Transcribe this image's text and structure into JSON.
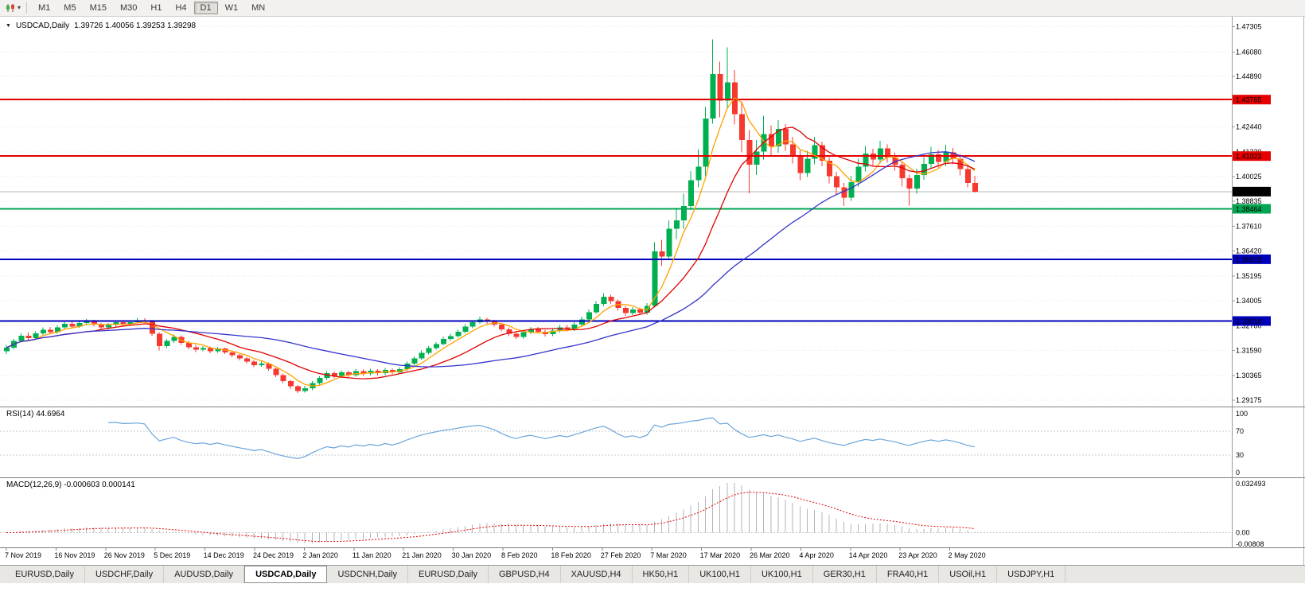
{
  "toolbar": {
    "timeframes": [
      "M1",
      "M5",
      "M15",
      "M30",
      "H1",
      "H4",
      "D1",
      "W1",
      "MN"
    ],
    "active_timeframe": "D1"
  },
  "chart": {
    "collapse_icon": "▼",
    "title_symbol": "USDCAD,Daily",
    "ohlc": "1.39726 1.40056 1.39253 1.39298"
  },
  "chart_data": {
    "type": "candlestick",
    "symbol": "USDCAD",
    "timeframe": "Daily",
    "up_color": "#00b050",
    "down_color": "#f5392f",
    "last_ohlc": {
      "open": "1.39726",
      "high": "1.40056",
      "low": "1.39253",
      "close": "1.39298"
    },
    "y_ticks": [
      "1.47305",
      "1.46080",
      "1.44890",
      "1.43700",
      "1.42440",
      "1.41230",
      "1.40025",
      "1.38835",
      "1.37610",
      "1.36420",
      "1.35195",
      "1.34005",
      "1.32780",
      "1.31590",
      "1.30365",
      "1.29175"
    ],
    "hlines": [
      {
        "price": 1.43765,
        "label": "1.43765",
        "color": "#e60000"
      },
      {
        "price": 1.41023,
        "label": "1.41023",
        "color": "#e60000"
      },
      {
        "price": 1.38464,
        "label": "1.38464",
        "color": "#00a651"
      },
      {
        "price": 1.36015,
        "label": "1.36015",
        "color": "#0000bb"
      },
      {
        "price": 1.33018,
        "label": "1.33018",
        "color": "#0000bb"
      }
    ],
    "current_price": {
      "price": 1.39298,
      "label": "1.39298",
      "color": "#000000"
    },
    "moving_averages": [
      {
        "period": 5,
        "color": "#ffa200"
      },
      {
        "period": 13,
        "color": "#e00000"
      },
      {
        "period": 34,
        "color": "#3333cc"
      }
    ],
    "indicators": {
      "rsi": {
        "label": "RSI(14) 44.6964",
        "period": 14,
        "value": "44.6964",
        "levels": [
          100,
          70,
          30,
          0
        ],
        "line_color": "#6aa5dc"
      },
      "macd": {
        "label": "MACD(12,26,9) -0.000603 0.000141",
        "fast": 12,
        "slow": 26,
        "signal": 9,
        "values": [
          "-0.000603",
          "0.000141"
        ],
        "axis_labels": [
          "0.032493",
          "0.00",
          "-0.00808"
        ],
        "hist_color": "#b5b5b5",
        "signal_color": "#e00000"
      }
    },
    "date_labels": [
      "7 Nov 2019",
      "16 Nov 2019",
      "26 Nov 2019",
      "5 Dec 2019",
      "14 Dec 2019",
      "24 Dec 2019",
      "2 Jan 2020",
      "11 Jan 2020",
      "21 Jan 2020",
      "30 Jan 2020",
      "8 Feb 2020",
      "18 Feb 2020",
      "27 Feb 2020",
      "7 Mar 2020",
      "17 Mar 2020",
      "26 Mar 2020",
      "4 Apr 2020",
      "14 Apr 2020",
      "23 Apr 2020",
      "2 May 2020"
    ],
    "candles": [
      [
        1.3155,
        1.3185,
        1.3142,
        1.3172
      ],
      [
        1.3172,
        1.3215,
        1.3165,
        1.3205
      ],
      [
        1.3205,
        1.3242,
        1.3198,
        1.323
      ],
      [
        1.323,
        1.3245,
        1.3205,
        1.3218
      ],
      [
        1.3218,
        1.3252,
        1.321,
        1.3242
      ],
      [
        1.3242,
        1.327,
        1.3235,
        1.326
      ],
      [
        1.326,
        1.3272,
        1.3238,
        1.3248
      ],
      [
        1.3248,
        1.328,
        1.324,
        1.327
      ],
      [
        1.327,
        1.3298,
        1.3262,
        1.3288
      ],
      [
        1.3288,
        1.3297,
        1.3265,
        1.3275
      ],
      [
        1.3275,
        1.3302,
        1.3268,
        1.3292
      ],
      [
        1.3292,
        1.3312,
        1.3285,
        1.33
      ],
      [
        1.33,
        1.3308,
        1.3275,
        1.3285
      ],
      [
        1.3285,
        1.3292,
        1.3258,
        1.327
      ],
      [
        1.327,
        1.3293,
        1.3262,
        1.3282
      ],
      [
        1.3282,
        1.3305,
        1.3275,
        1.3295
      ],
      [
        1.3295,
        1.3304,
        1.3278,
        1.3288
      ],
      [
        1.3288,
        1.3306,
        1.328,
        1.3296
      ],
      [
        1.3296,
        1.3318,
        1.329,
        1.3305
      ],
      [
        1.3305,
        1.3315,
        1.3292,
        1.33
      ],
      [
        1.33,
        1.3308,
        1.323,
        1.324
      ],
      [
        1.324,
        1.3248,
        1.3158,
        1.318
      ],
      [
        1.318,
        1.3215,
        1.317,
        1.3205
      ],
      [
        1.3205,
        1.3236,
        1.3196,
        1.3225
      ],
      [
        1.3225,
        1.3232,
        1.3185,
        1.3195
      ],
      [
        1.3195,
        1.3205,
        1.3165,
        1.3175
      ],
      [
        1.3175,
        1.3185,
        1.3152,
        1.3162
      ],
      [
        1.3162,
        1.318,
        1.3155,
        1.317
      ],
      [
        1.317,
        1.3178,
        1.3146,
        1.3155
      ],
      [
        1.3155,
        1.3177,
        1.3148,
        1.3168
      ],
      [
        1.3168,
        1.3173,
        1.3142,
        1.315
      ],
      [
        1.315,
        1.3158,
        1.3126,
        1.3135
      ],
      [
        1.3135,
        1.3142,
        1.311,
        1.312
      ],
      [
        1.312,
        1.3128,
        1.3096,
        1.3105
      ],
      [
        1.3105,
        1.3112,
        1.3078,
        1.3088
      ],
      [
        1.3088,
        1.3104,
        1.308,
        1.3095
      ],
      [
        1.3095,
        1.31,
        1.306,
        1.307
      ],
      [
        1.307,
        1.3076,
        1.303,
        1.304
      ],
      [
        1.304,
        1.3046,
        1.3,
        1.301
      ],
      [
        1.301,
        1.3016,
        1.2972,
        1.2985
      ],
      [
        1.2985,
        1.299,
        1.2952,
        1.2962
      ],
      [
        1.2962,
        1.2986,
        1.2955,
        1.2975
      ],
      [
        1.2975,
        1.301,
        1.2966,
        1.3
      ],
      [
        1.3,
        1.3034,
        1.2992,
        1.3025
      ],
      [
        1.3025,
        1.3058,
        1.3016,
        1.3048
      ],
      [
        1.3048,
        1.3056,
        1.3024,
        1.3035
      ],
      [
        1.3035,
        1.3062,
        1.3026,
        1.3052
      ],
      [
        1.3052,
        1.306,
        1.303,
        1.304
      ],
      [
        1.304,
        1.3068,
        1.3032,
        1.3058
      ],
      [
        1.3058,
        1.3066,
        1.3036,
        1.3046
      ],
      [
        1.3046,
        1.307,
        1.3038,
        1.306
      ],
      [
        1.306,
        1.3068,
        1.3038,
        1.3048
      ],
      [
        1.3048,
        1.3074,
        1.304,
        1.3065
      ],
      [
        1.3065,
        1.3072,
        1.3042,
        1.3052
      ],
      [
        1.3052,
        1.3078,
        1.3044,
        1.3068
      ],
      [
        1.3068,
        1.3104,
        1.306,
        1.3095
      ],
      [
        1.3095,
        1.313,
        1.3088,
        1.312
      ],
      [
        1.312,
        1.3158,
        1.3112,
        1.3148
      ],
      [
        1.3148,
        1.318,
        1.314,
        1.317
      ],
      [
        1.317,
        1.32,
        1.3162,
        1.319
      ],
      [
        1.319,
        1.3226,
        1.3184,
        1.3215
      ],
      [
        1.3215,
        1.324,
        1.3206,
        1.3228
      ],
      [
        1.3228,
        1.3262,
        1.322,
        1.325
      ],
      [
        1.325,
        1.3286,
        1.3242,
        1.3275
      ],
      [
        1.3275,
        1.3306,
        1.3266,
        1.3295
      ],
      [
        1.3295,
        1.3322,
        1.3288,
        1.331
      ],
      [
        1.331,
        1.3318,
        1.3288,
        1.3298
      ],
      [
        1.3298,
        1.3308,
        1.3274,
        1.3285
      ],
      [
        1.3285,
        1.3292,
        1.3252,
        1.3262
      ],
      [
        1.3262,
        1.327,
        1.3228,
        1.324
      ],
      [
        1.324,
        1.3248,
        1.3214,
        1.3225
      ],
      [
        1.3225,
        1.3258,
        1.3216,
        1.3248
      ],
      [
        1.3248,
        1.3272,
        1.3238,
        1.3262
      ],
      [
        1.3262,
        1.3272,
        1.324,
        1.325
      ],
      [
        1.325,
        1.326,
        1.3226,
        1.3238
      ],
      [
        1.3238,
        1.3266,
        1.3228,
        1.3255
      ],
      [
        1.3255,
        1.3282,
        1.3246,
        1.327
      ],
      [
        1.327,
        1.3282,
        1.3252,
        1.3262
      ],
      [
        1.3262,
        1.3296,
        1.3254,
        1.3285
      ],
      [
        1.3285,
        1.3322,
        1.3276,
        1.331
      ],
      [
        1.331,
        1.3358,
        1.33,
        1.3345
      ],
      [
        1.3345,
        1.3398,
        1.3336,
        1.3385
      ],
      [
        1.3385,
        1.3436,
        1.3376,
        1.342
      ],
      [
        1.342,
        1.343,
        1.3384,
        1.3398
      ],
      [
        1.3398,
        1.3406,
        1.3352,
        1.3365
      ],
      [
        1.3365,
        1.3374,
        1.3326,
        1.334
      ],
      [
        1.334,
        1.337,
        1.333,
        1.3358
      ],
      [
        1.3358,
        1.3368,
        1.333,
        1.3342
      ],
      [
        1.3342,
        1.3388,
        1.3332,
        1.3375
      ],
      [
        1.3375,
        1.3685,
        1.3368,
        1.364
      ],
      [
        1.364,
        1.3695,
        1.357,
        1.3615
      ],
      [
        1.3615,
        1.379,
        1.3598,
        1.375
      ],
      [
        1.375,
        1.3852,
        1.37,
        1.379
      ],
      [
        1.379,
        1.392,
        1.375,
        1.386
      ],
      [
        1.386,
        1.403,
        1.384,
        1.3985
      ],
      [
        1.3985,
        1.4135,
        1.395,
        1.405
      ],
      [
        1.405,
        1.434,
        1.4005,
        1.4285
      ],
      [
        1.4285,
        1.4669,
        1.426,
        1.45
      ],
      [
        1.45,
        1.456,
        1.429,
        1.4372
      ],
      [
        1.4372,
        1.463,
        1.433,
        1.446
      ],
      [
        1.446,
        1.452,
        1.4255,
        1.4305
      ],
      [
        1.4305,
        1.4365,
        1.412,
        1.418
      ],
      [
        1.418,
        1.4228,
        1.3922,
        1.406
      ],
      [
        1.406,
        1.418,
        1.401,
        1.4125
      ],
      [
        1.4125,
        1.4298,
        1.4086,
        1.421
      ],
      [
        1.421,
        1.4252,
        1.4105,
        1.415
      ],
      [
        1.415,
        1.4276,
        1.4118,
        1.4235
      ],
      [
        1.4235,
        1.4258,
        1.4128,
        1.416
      ],
      [
        1.416,
        1.4196,
        1.4066,
        1.4105
      ],
      [
        1.4105,
        1.413,
        1.3985,
        1.402
      ],
      [
        1.402,
        1.4128,
        1.4,
        1.409
      ],
      [
        1.409,
        1.4195,
        1.4062,
        1.4155
      ],
      [
        1.4155,
        1.4172,
        1.4052,
        1.408
      ],
      [
        1.408,
        1.4098,
        1.397,
        1.4005
      ],
      [
        1.4005,
        1.4026,
        1.3918,
        1.395
      ],
      [
        1.395,
        1.3972,
        1.386,
        1.39
      ],
      [
        1.39,
        1.4006,
        1.3885,
        1.3975
      ],
      [
        1.3975,
        1.409,
        1.3955,
        1.405
      ],
      [
        1.405,
        1.4152,
        1.4028,
        1.4115
      ],
      [
        1.4115,
        1.4138,
        1.4056,
        1.4085
      ],
      [
        1.4085,
        1.4176,
        1.4066,
        1.414
      ],
      [
        1.414,
        1.416,
        1.407,
        1.4095
      ],
      [
        1.4095,
        1.4118,
        1.4032,
        1.406
      ],
      [
        1.406,
        1.4076,
        1.3955,
        1.3995
      ],
      [
        1.3995,
        1.4012,
        1.3862,
        1.3945
      ],
      [
        1.3945,
        1.4042,
        1.392,
        1.401
      ],
      [
        1.401,
        1.4098,
        1.3988,
        1.4065
      ],
      [
        1.4065,
        1.4148,
        1.404,
        1.411
      ],
      [
        1.411,
        1.4132,
        1.4048,
        1.4075
      ],
      [
        1.4075,
        1.4158,
        1.4052,
        1.412
      ],
      [
        1.412,
        1.4142,
        1.4062,
        1.409
      ],
      [
        1.409,
        1.4112,
        1.4008,
        1.404
      ],
      [
        1.404,
        1.4056,
        1.395,
        1.3972
      ],
      [
        1.39726,
        1.40056,
        1.39253,
        1.39298
      ]
    ]
  },
  "tabs": {
    "active_index": 3,
    "items": [
      "EURUSD,Daily",
      "USDCHF,Daily",
      "AUDUSD,Daily",
      "USDCAD,Daily",
      "USDCNH,Daily",
      "EURUSD,Daily",
      "GBPUSD,H4",
      "XAUUSD,H4",
      "HK50,H1",
      "UK100,H1",
      "UK100,H1",
      "GER30,H1",
      "FRA40,H1",
      "USOil,H1",
      "USDJPY,H1"
    ]
  }
}
